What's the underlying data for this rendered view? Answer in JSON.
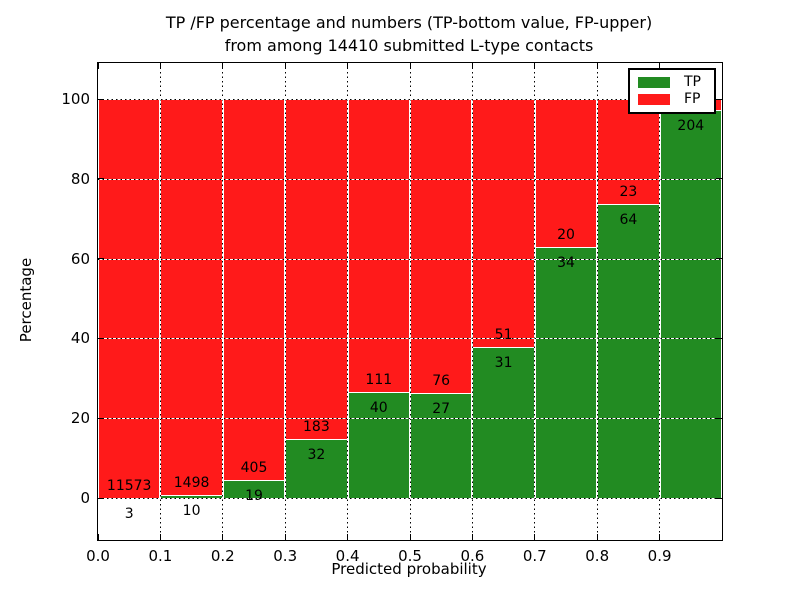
{
  "title": {
    "line1": "TP /FP percentage and numbers (TP-bottom value, FP-upper)",
    "line2": "from among 14410 submitted L-type contacts"
  },
  "axes": {
    "xlabel": "Predicted probability",
    "ylabel": "Percentage",
    "x_ticks": [
      "0.0",
      "0.1",
      "0.2",
      "0.3",
      "0.4",
      "0.5",
      "0.6",
      "0.7",
      "0.8",
      "0.9"
    ],
    "y_ticks": [
      "0",
      "20",
      "40",
      "60",
      "80",
      "100"
    ]
  },
  "legend": {
    "items": [
      {
        "label": "TP",
        "color": "#228b22"
      },
      {
        "label": "FP",
        "color": "#ff1a1a"
      }
    ]
  },
  "colors": {
    "tp": "#228b22",
    "fp": "#ff1a1a",
    "frame": "#000000",
    "background": "#ffffff"
  },
  "chart_data": {
    "type": "bar",
    "stacked": true,
    "normalized_to_percent": true,
    "title": "TP /FP percentage and numbers (TP-bottom value, FP-upper) from among 14410 submitted L-type contacts",
    "xlabel": "Predicted probability",
    "ylabel": "Percentage",
    "total_submitted": 14410,
    "categories": [
      "0.0-0.1",
      "0.1-0.2",
      "0.2-0.3",
      "0.3-0.4",
      "0.4-0.5",
      "0.5-0.6",
      "0.6-0.7",
      "0.7-0.8",
      "0.8-0.9",
      "0.9-1.0"
    ],
    "series": [
      {
        "name": "TP",
        "color": "#228b22",
        "counts": [
          3,
          10,
          19,
          32,
          40,
          27,
          31,
          34,
          64,
          204
        ]
      },
      {
        "name": "FP",
        "color": "#ff1a1a",
        "counts": [
          11573,
          1498,
          405,
          183,
          111,
          76,
          51,
          20,
          23,
          null
        ]
      }
    ],
    "tp_percent": [
      0.03,
      0.66,
      4.48,
      14.88,
      26.49,
      26.21,
      37.8,
      62.96,
      73.56,
      97.14
    ],
    "xlim": [
      0.0,
      1.0
    ],
    "ylim": [
      -10.5,
      109
    ],
    "grid": "dotted",
    "legend_position": "upper right",
    "note_hidden_label": "FP count of last bar is covered by the legend"
  }
}
